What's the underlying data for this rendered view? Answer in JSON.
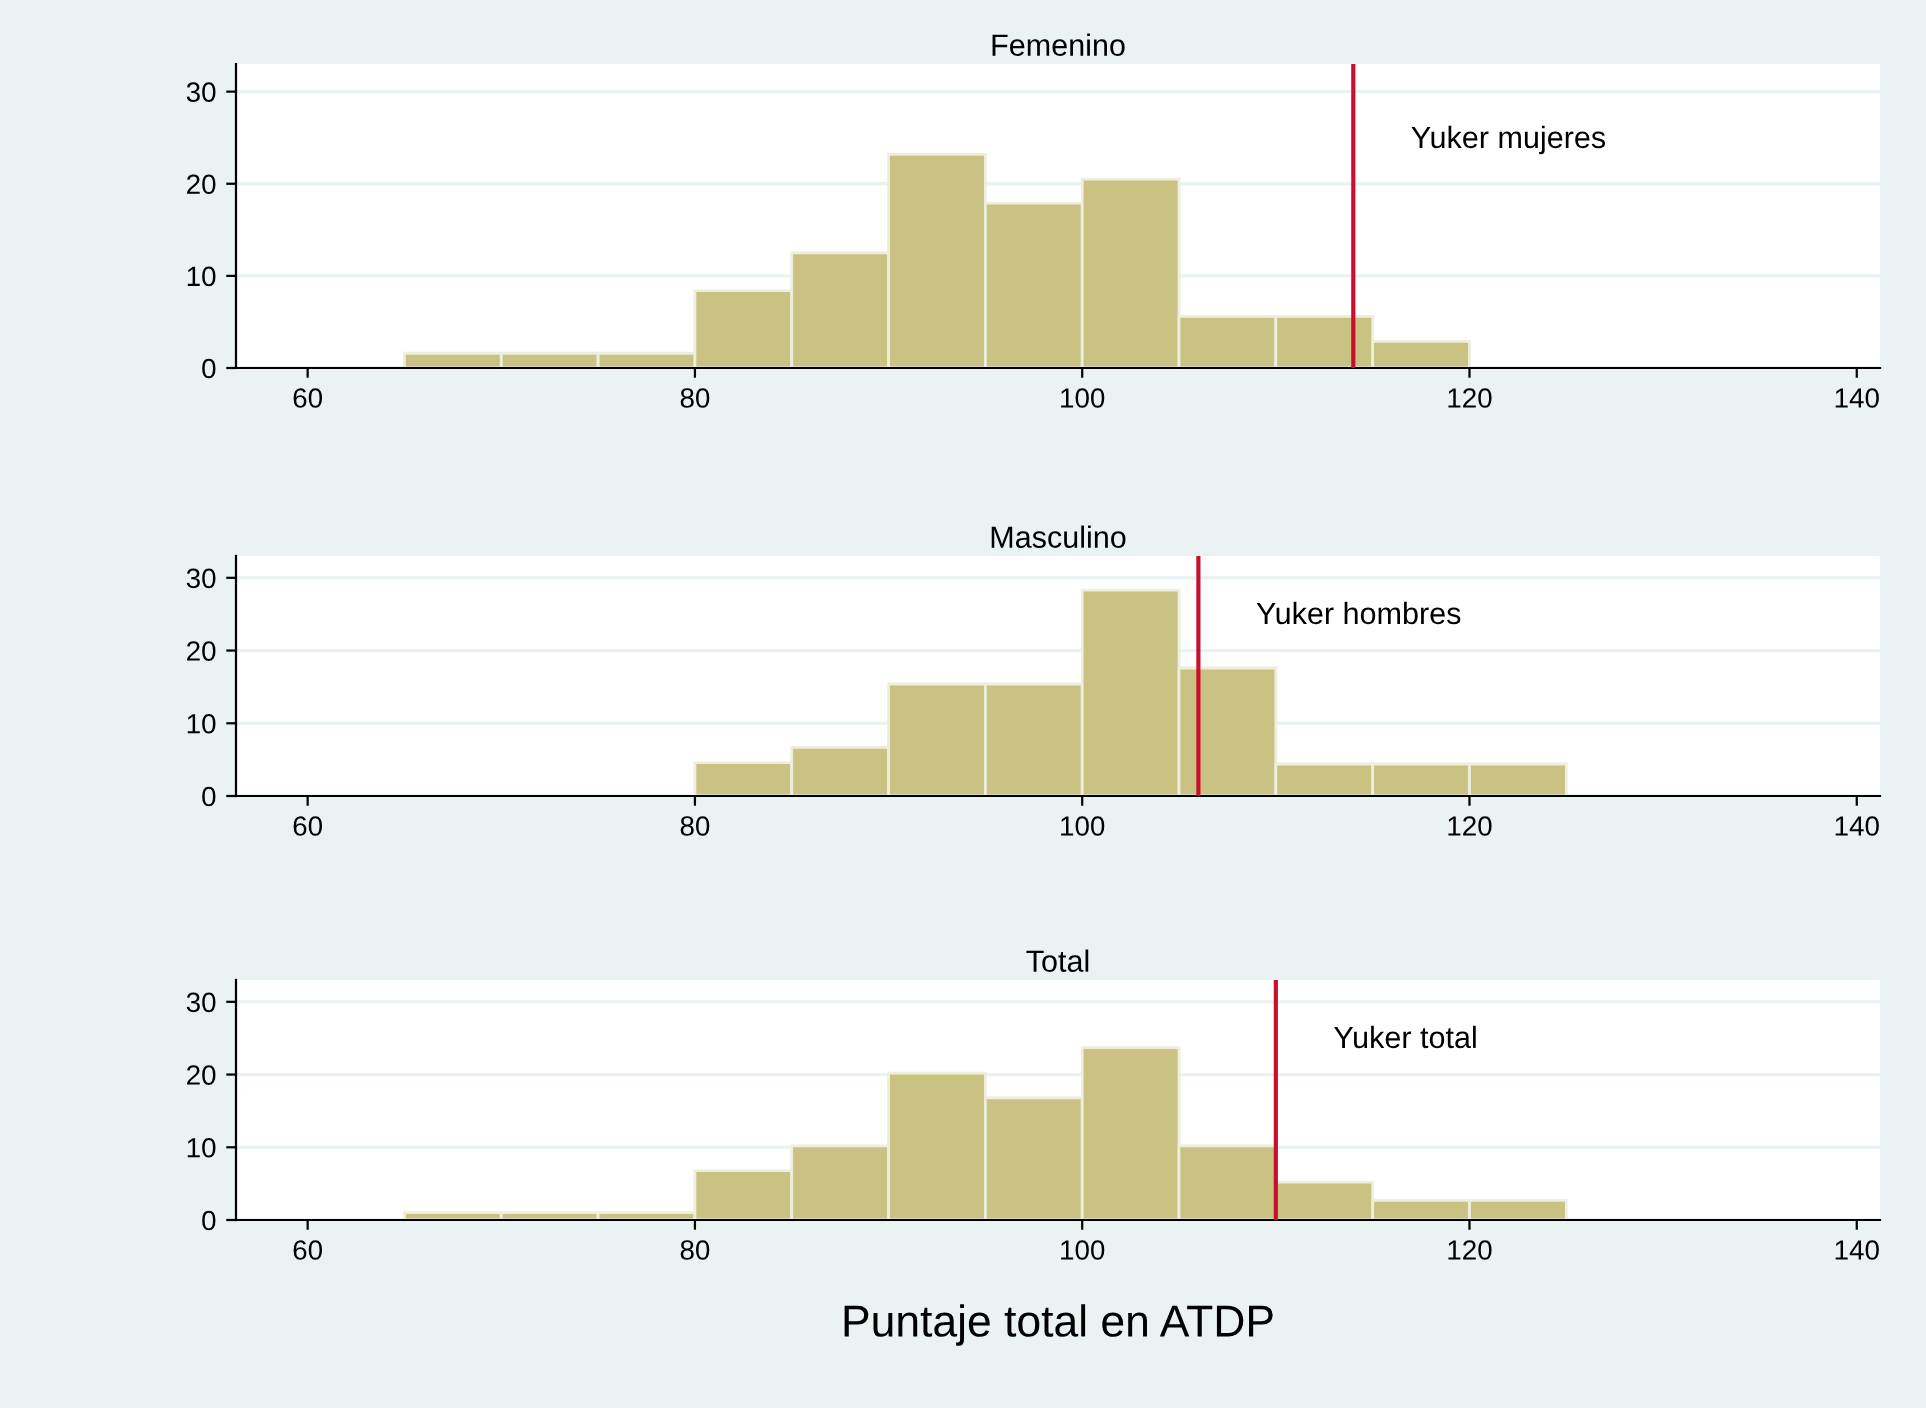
{
  "chart_data": [
    {
      "type": "histogram",
      "title": "Femenino",
      "bins": [
        65,
        70,
        75,
        80,
        85,
        90,
        95,
        100,
        105,
        110,
        115,
        120
      ],
      "values": [
        1.6,
        1.6,
        1.6,
        8.4,
        12.5,
        23.2,
        17.9,
        20.5,
        5.6,
        5.6,
        2.9
      ],
      "color": "#c9c283",
      "xlim": [
        56.3,
        141.2
      ],
      "xticks": [
        60,
        80,
        100,
        120,
        140
      ],
      "ylim": [
        0,
        33
      ],
      "yticks": [
        0,
        10,
        20,
        30
      ],
      "grid": "y",
      "ref_lines": [
        {
          "axis": "x",
          "value": 114,
          "label": "Yuker mujeres",
          "color": "#c8102e"
        }
      ]
    },
    {
      "type": "histogram",
      "title": "Masculino",
      "bins": [
        80,
        85,
        90,
        95,
        100,
        105,
        110,
        115,
        120,
        125
      ],
      "values": [
        4.6,
        6.7,
        15.4,
        15.4,
        28.3,
        17.6,
        4.4,
        4.4,
        4.4
      ],
      "color": "#c9c283",
      "xlim": [
        56.3,
        141.2
      ],
      "xticks": [
        60,
        80,
        100,
        120,
        140
      ],
      "ylim": [
        0,
        33
      ],
      "yticks": [
        0,
        10,
        20,
        30
      ],
      "grid": "y",
      "ref_lines": [
        {
          "axis": "x",
          "value": 106,
          "label": "Yuker hombres",
          "color": "#c8102e"
        }
      ]
    },
    {
      "type": "histogram",
      "title": "Total",
      "xlabel": "Puntaje total en ATDP",
      "bins": [
        65,
        70,
        75,
        80,
        85,
        90,
        95,
        100,
        105,
        110,
        115,
        120,
        125
      ],
      "values": [
        1.0,
        1.0,
        1.0,
        6.8,
        10.2,
        20.2,
        16.8,
        23.7,
        10.2,
        5.2,
        2.7,
        2.7
      ],
      "color": "#c9c283",
      "xlim": [
        56.3,
        141.2
      ],
      "xticks": [
        60,
        80,
        100,
        120,
        140
      ],
      "ylim": [
        0,
        33
      ],
      "yticks": [
        0,
        10,
        20,
        30
      ],
      "grid": "y",
      "ref_lines": [
        {
          "axis": "x",
          "value": 110,
          "label": "Yuker total",
          "color": "#c8102e"
        }
      ]
    }
  ]
}
